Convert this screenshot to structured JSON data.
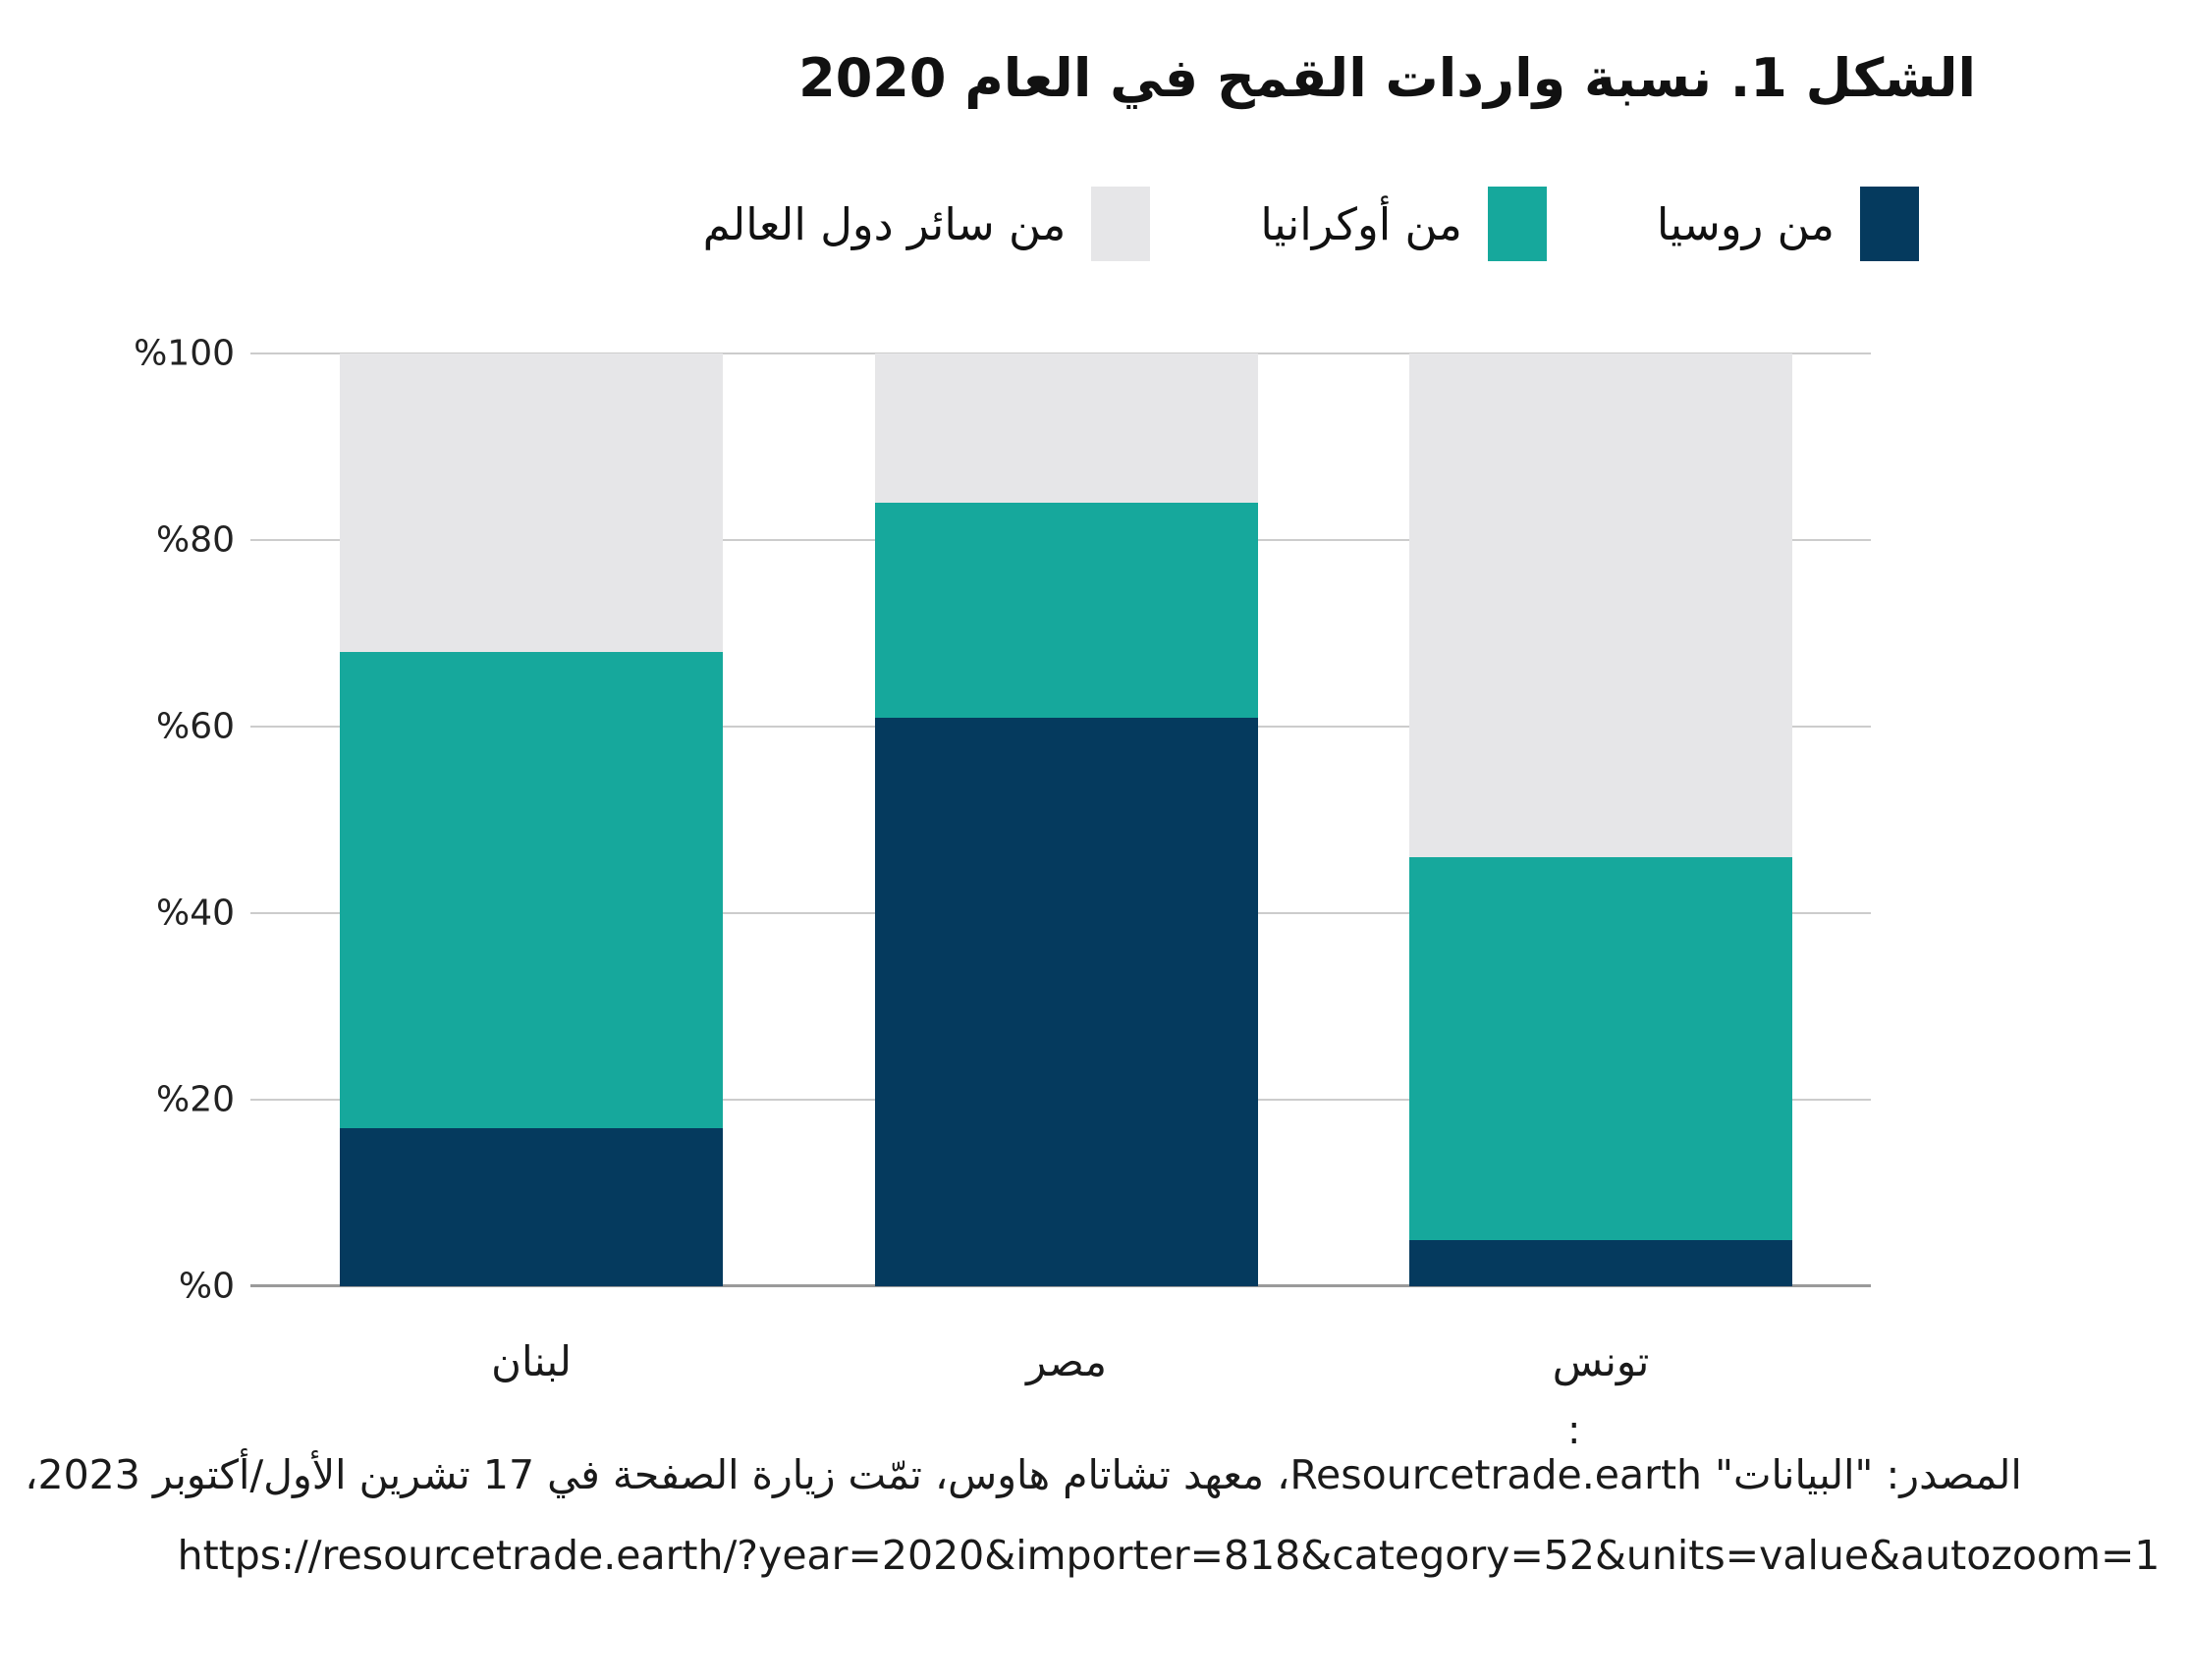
{
  "title": "الشكل 1. نسبة واردات القمح في العام 2020",
  "legend": {
    "items": [
      {
        "label": "من روسيا",
        "color": "#053a5e"
      },
      {
        "label": "من أوكرانيا",
        "color": "#16a89c"
      },
      {
        "label": "من سائر دول العالم",
        "color": "#e6e6e8"
      }
    ]
  },
  "chart_data": {
    "type": "bar",
    "stacked": true,
    "title": "الشكل 1. نسبة واردات القمح في العام 2020",
    "categories": [
      "لبنان",
      "مصر",
      "تونس"
    ],
    "series": [
      {
        "name": "من روسيا",
        "color": "#053a5e",
        "values": [
          17,
          61,
          5
        ]
      },
      {
        "name": "من أوكرانيا",
        "color": "#16a89c",
        "values": [
          51,
          23,
          41
        ]
      },
      {
        "name": "من سائر دول العالم",
        "color": "#e6e6e8",
        "values": [
          32,
          16,
          54
        ]
      }
    ],
    "ylim": [
      0,
      100
    ],
    "yticks": [
      0,
      20,
      40,
      60,
      80,
      100
    ],
    "ytick_labels": [
      "%0",
      "%20",
      "%40",
      "%60",
      "%80",
      "%100"
    ],
    "unit": "%",
    "grid": true,
    "legend_position": "top-right"
  },
  "footer": {
    "colon": ":",
    "source_line": "المصدر: \"البيانات\" Resourcetrade.earth، معهد تشاتام هاوس، تمّت زيارة الصفحة في 17 تشرين الأول/أكتوبر 2023،",
    "url_line": "https://resourcetrade.earth/?year=2020&importer=818&category=52&units=value&autozoom=1"
  },
  "colors": {
    "russia": "#053a5e",
    "ukraine": "#16a89c",
    "rest_of_world": "#e6e6e8",
    "gridline": "#cccccc",
    "axis": "#9a9a9a"
  }
}
